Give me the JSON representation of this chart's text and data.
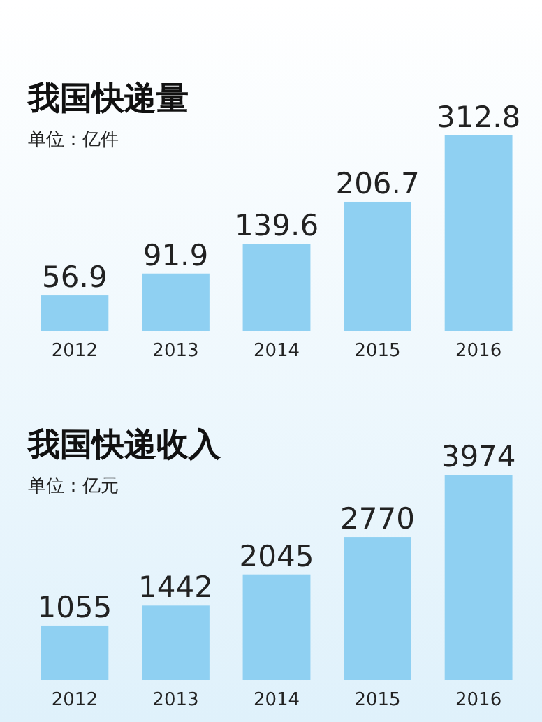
{
  "chart_data": [
    {
      "type": "bar",
      "title": "我国快递量",
      "subtitle": "单位：亿件",
      "categories": [
        "2012",
        "2013",
        "2014",
        "2015",
        "2016"
      ],
      "values": [
        56.9,
        91.9,
        139.6,
        206.7,
        312.8
      ],
      "color": "#8fd0f2",
      "data_labels": true
    },
    {
      "type": "bar",
      "title": "我国快递收入",
      "subtitle": "单位：亿元",
      "categories": [
        "2012",
        "2013",
        "2014",
        "2015",
        "2016"
      ],
      "values": [
        1055,
        1442,
        2045,
        2770,
        3974
      ],
      "color": "#8fd0f2",
      "data_labels": true
    }
  ]
}
